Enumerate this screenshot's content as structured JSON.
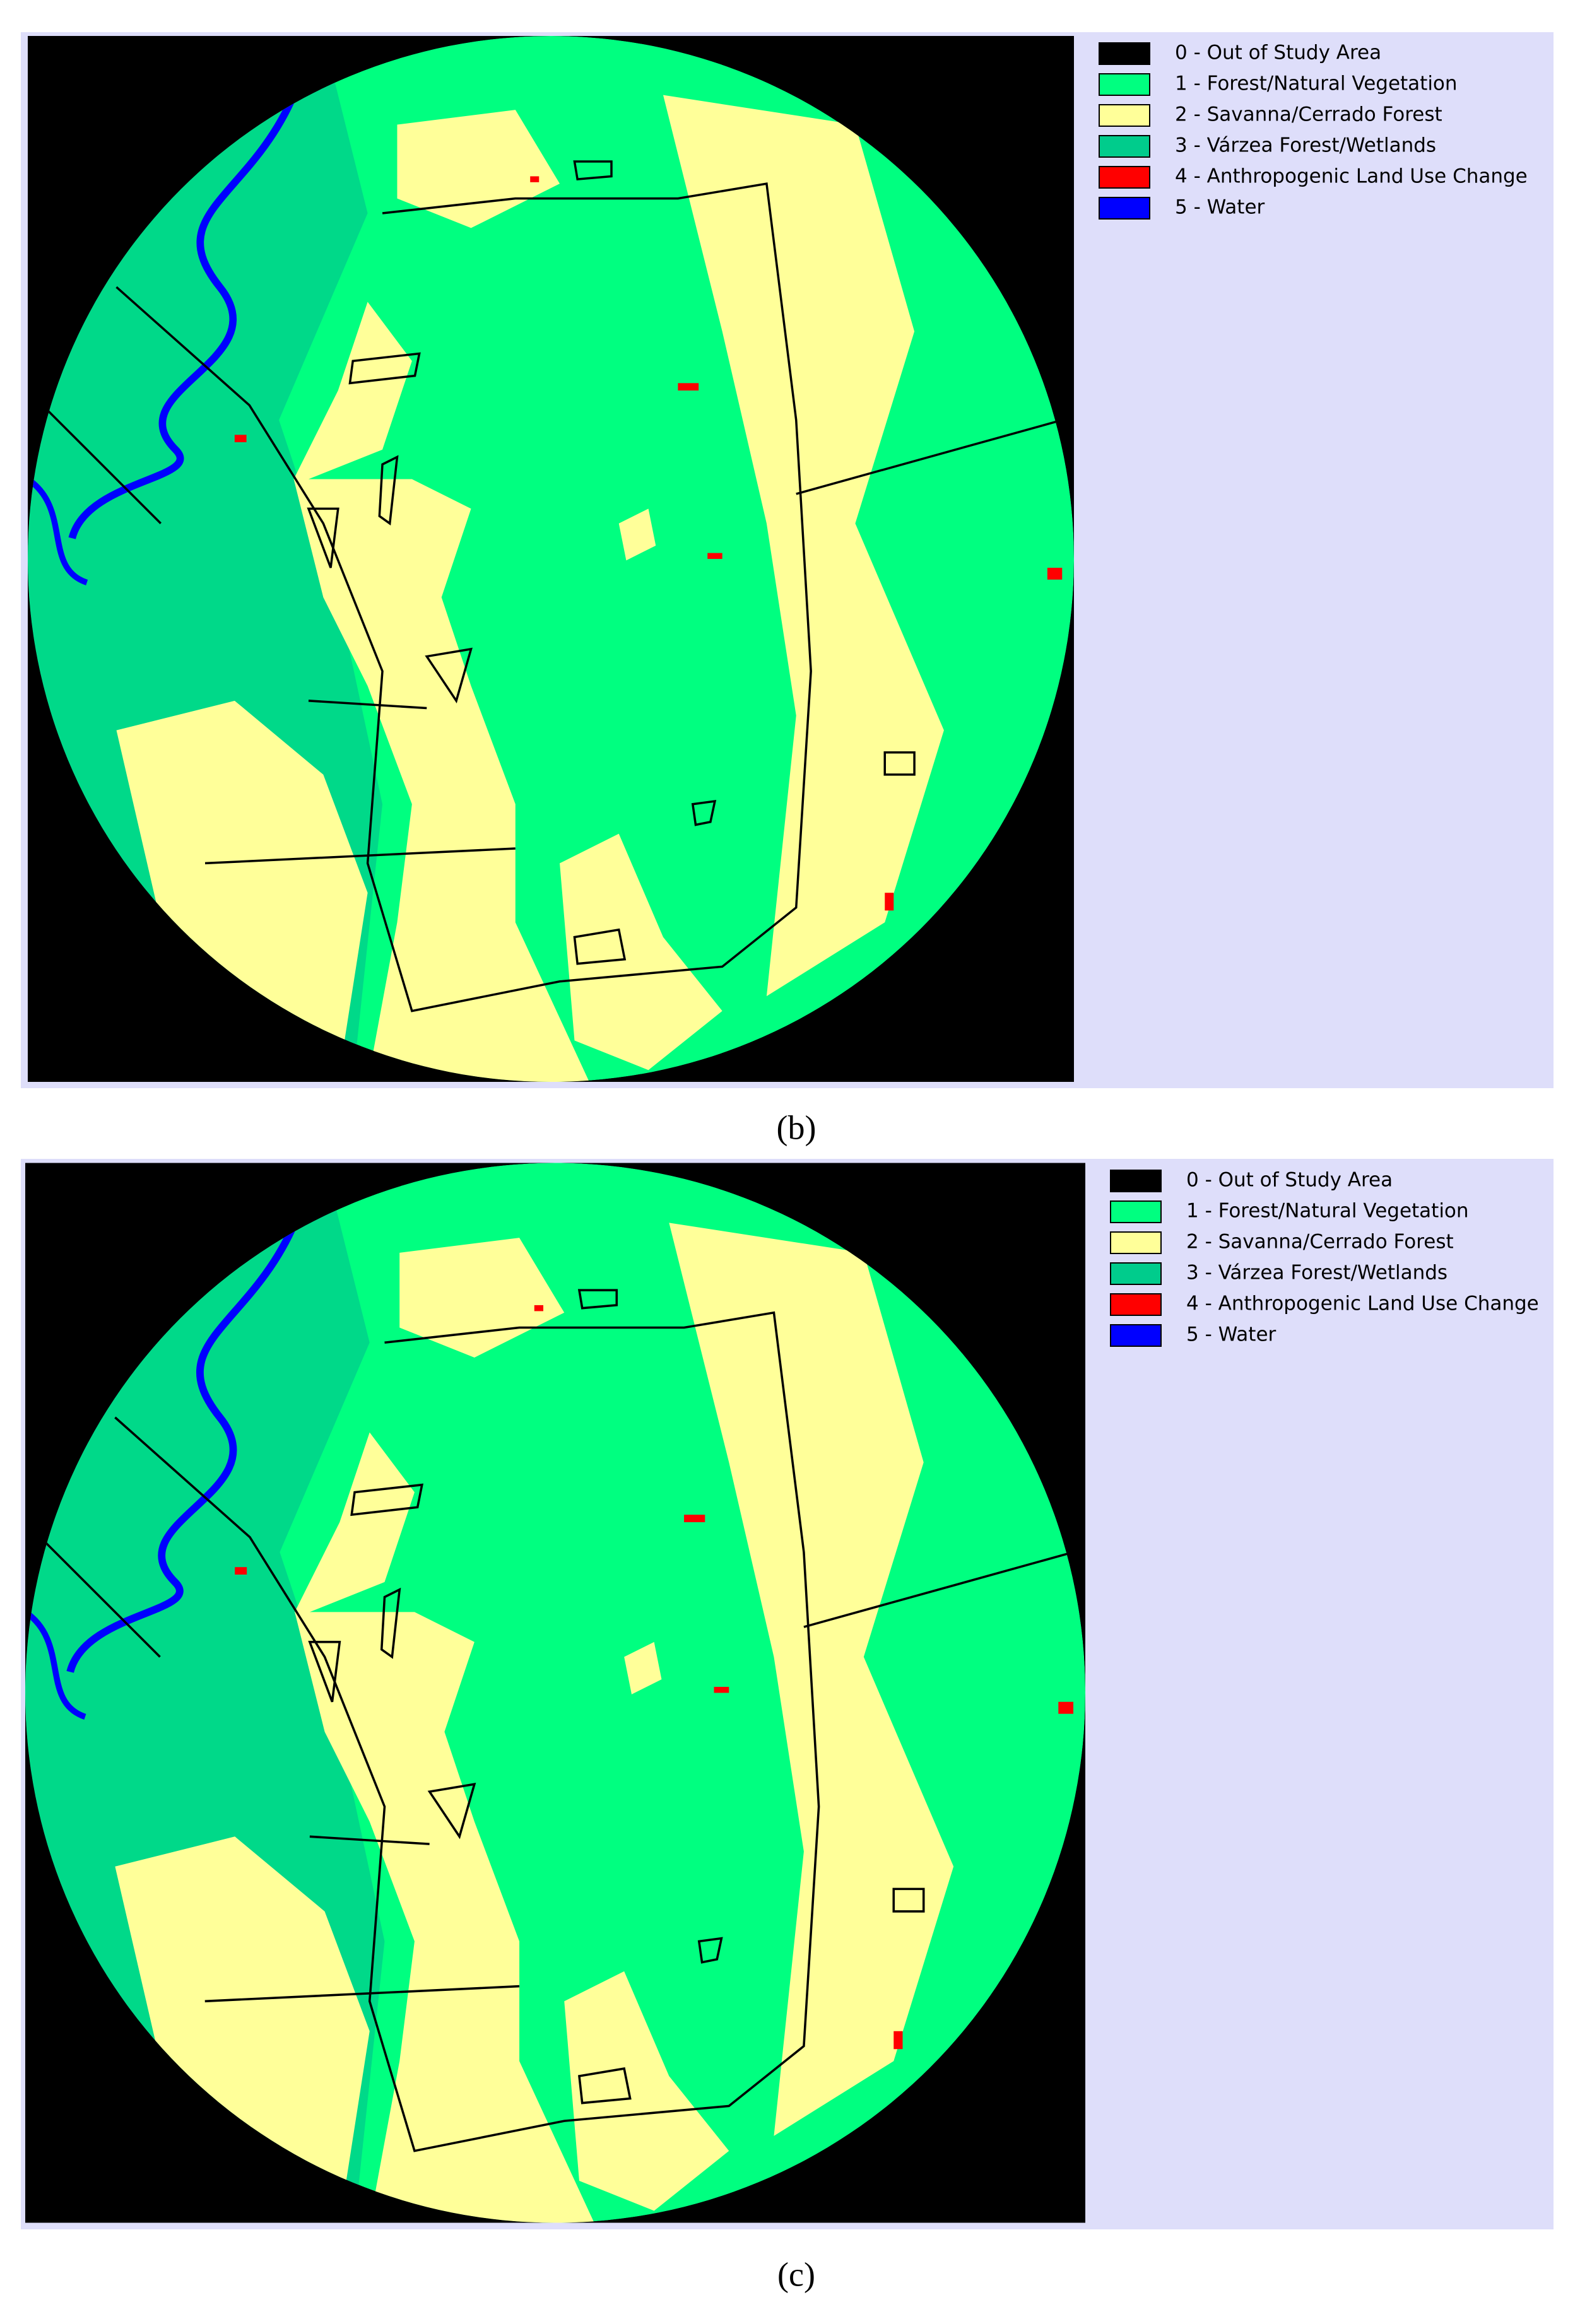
{
  "panels": [
    {
      "caption": "(b)",
      "legend": [
        {
          "label": "0 - Out of Study Area",
          "color": "#000000"
        },
        {
          "label": "1 - Forest/Natural Vegetation",
          "color": "#00ff80"
        },
        {
          "label": "2 - Savanna/Cerrado Forest",
          "color": "#ffff99"
        },
        {
          "label": "3 - Várzea Forest/Wetlands",
          "color": "#00cc8c"
        },
        {
          "label": "4 - Anthropogenic Land Use Change",
          "color": "#ff0000"
        },
        {
          "label": "5 - Water",
          "color": "#0000ff"
        }
      ]
    },
    {
      "caption": "(c)",
      "legend": [
        {
          "label": "0 - Out of Study Area",
          "color": "#000000"
        },
        {
          "label": "1 - Forest/Natural Vegetation",
          "color": "#00ff80"
        },
        {
          "label": "2 - Savanna/Cerrado Forest",
          "color": "#ffff99"
        },
        {
          "label": "3 - Várzea Forest/Wetlands",
          "color": "#00cc8c"
        },
        {
          "label": "4 - Anthropogenic Land Use Change",
          "color": "#ff0000"
        },
        {
          "label": "5 - Water",
          "color": "#0000ff"
        }
      ]
    }
  ]
}
